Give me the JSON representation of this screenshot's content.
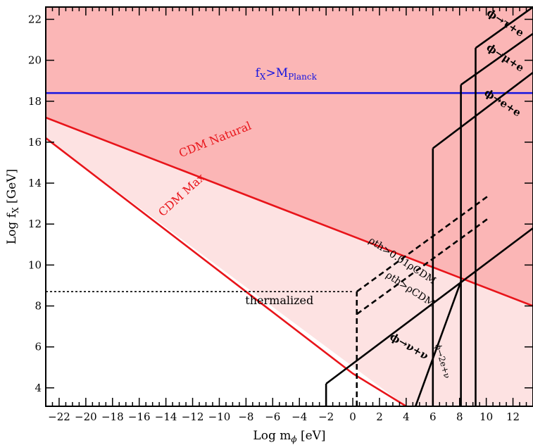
{
  "chart_data": {
    "type": "line",
    "x_axis": {
      "label": "Log m",
      "label_sub": "ϕ",
      "label_unit": " [eV]",
      "range": [
        -23,
        13.5
      ],
      "ticks": [
        -22,
        -20,
        -18,
        -16,
        -14,
        -12,
        -10,
        -8,
        -6,
        -4,
        -2,
        0,
        2,
        4,
        6,
        8,
        10,
        12
      ],
      "tick_labels": [
        "−22",
        "−20",
        "−18",
        "−16",
        "−14",
        "−12",
        "−10",
        "−8",
        "−6",
        "−4",
        "−2",
        "0",
        "2",
        "4",
        "6",
        "8",
        "10",
        "12"
      ]
    },
    "y_axis": {
      "label": "Log f",
      "label_sub": "X",
      "label_unit": " [GeV]",
      "range": [
        22.6,
        3.1
      ],
      "inverted": true,
      "ticks": [
        4,
        6,
        8,
        10,
        12,
        14,
        16,
        18,
        20,
        22
      ],
      "tick_labels": [
        "4",
        "6",
        "8",
        "10",
        "12",
        "14",
        "16",
        "18",
        "20",
        "22"
      ]
    },
    "colors": {
      "cdm": "#e8141a",
      "planck": "#1414e0",
      "light_fill": "#fde2e2",
      "dark_fill": "#fbb6b6",
      "bounds": "#000000"
    },
    "regions": [
      {
        "name": "light",
        "points": [
          [
            -23,
            16.2
          ],
          [
            4,
            3.1
          ],
          [
            13.5,
            3.1
          ],
          [
            13.5,
            22.6
          ],
          [
            -23,
            22.6
          ]
        ]
      },
      {
        "name": "dark",
        "points": [
          [
            -23,
            17.2
          ],
          [
            13.5,
            8.0
          ],
          [
            13.5,
            22.6
          ],
          [
            -23,
            22.6
          ]
        ]
      }
    ],
    "series": [
      {
        "name": "CDM Max",
        "color": "#e8141a",
        "dash": false,
        "points": [
          [
            -23,
            16.2
          ],
          [
            0,
            4.7
          ],
          [
            4,
            3.1
          ]
        ]
      },
      {
        "name": "CDM Natural",
        "color": "#e8141a",
        "dash": false,
        "points": [
          [
            -23,
            17.2
          ],
          [
            13.5,
            8.0
          ]
        ]
      },
      {
        "name": "",
        "color": "#1414e0",
        "dash": false,
        "points": [
          [
            -23,
            18.4
          ],
          [
            13.5,
            18.4
          ]
        ]
      },
      {
        "name": "",
        "color": "#000000",
        "dash": "dot",
        "points": [
          [
            -23,
            8.7
          ],
          [
            0,
            8.7
          ]
        ]
      },
      {
        "name": "",
        "color": "#000000",
        "dash": "dash",
        "points": [
          [
            0.3,
            3.1
          ],
          [
            0.3,
            8.7
          ]
        ]
      },
      {
        "name": "",
        "color": "#000000",
        "dash": "dash",
        "points": [
          [
            0.3,
            7.6
          ],
          [
            10.2,
            12.3
          ]
        ]
      },
      {
        "name": "",
        "color": "#000000",
        "dash": "dash",
        "points": [
          [
            0.3,
            8.7
          ],
          [
            10.2,
            13.4
          ]
        ]
      },
      {
        "name": "",
        "color": "#000000",
        "dash": false,
        "points": [
          [
            -2,
            4.2
          ],
          [
            -2,
            3.1
          ]
        ]
      },
      {
        "name": "",
        "color": "#000000",
        "dash": false,
        "points": [
          [
            -2,
            4.2
          ],
          [
            13.5,
            11.8
          ]
        ]
      },
      {
        "name": "",
        "color": "#000000",
        "dash": false,
        "points": [
          [
            4.7,
            3.1
          ],
          [
            8.1,
            9.2
          ]
        ]
      },
      {
        "name": "",
        "color": "#000000",
        "dash": false,
        "points": [
          [
            6.0,
            3.1
          ],
          [
            6.0,
            15.7
          ]
        ]
      },
      {
        "name": "",
        "color": "#000000",
        "dash": false,
        "points": [
          [
            6.0,
            15.7
          ],
          [
            13.5,
            19.4
          ]
        ]
      },
      {
        "name": "",
        "color": "#000000",
        "dash": false,
        "points": [
          [
            8.1,
            3.1
          ],
          [
            8.1,
            18.8
          ]
        ]
      },
      {
        "name": "",
        "color": "#000000",
        "dash": false,
        "points": [
          [
            8.1,
            18.8
          ],
          [
            13.5,
            21.3
          ]
        ]
      },
      {
        "name": "",
        "color": "#000000",
        "dash": false,
        "points": [
          [
            9.2,
            3.1
          ],
          [
            9.2,
            20.6
          ]
        ]
      },
      {
        "name": "",
        "color": "#000000",
        "dash": false,
        "points": [
          [
            9.2,
            20.6
          ],
          [
            13.5,
            22.6
          ]
        ]
      }
    ],
    "annotations": [
      {
        "text": "thermalized",
        "x": -5.5,
        "y": 8.25,
        "color": "#000000",
        "angle": 0,
        "size": 16
      },
      {
        "text": "CDM Max",
        "x": -12.8,
        "y": 13.4,
        "color": "#e8141a",
        "angle": -42,
        "size": 16
      },
      {
        "text": "CDM Natural",
        "x": -10.3,
        "y": 16.1,
        "color": "#e8141a",
        "angle": -22,
        "size": 16
      },
      {
        "text": "ϕ→ν+ν",
        "x": 4.2,
        "y": 6.0,
        "color": "#000000",
        "angle": 30,
        "size": 15,
        "bold": true
      },
      {
        "text": "ϕ→2e+ν",
        "x": 6.7,
        "y": 5.3,
        "color": "#000000",
        "angle": 74,
        "size": 12
      },
      {
        "text": "ρth>ρCDM",
        "x": 4.3,
        "y": 8.8,
        "color": "#000000",
        "angle": 33,
        "size": 14
      },
      {
        "text": "ρth>0.01ρCDM",
        "x": 3.7,
        "y": 10.2,
        "color": "#000000",
        "angle": 33,
        "size": 14
      },
      {
        "text": "ϕ→e+e",
        "x": 11.2,
        "y": 17.9,
        "color": "#000000",
        "angle": 33,
        "size": 15,
        "bold": true
      },
      {
        "text": "ϕ→μ+e",
        "x": 11.4,
        "y": 20.1,
        "color": "#000000",
        "angle": 33,
        "size": 15,
        "bold": true
      },
      {
        "text": "ϕ→τ+e",
        "x": 11.4,
        "y": 21.8,
        "color": "#000000",
        "angle": 33,
        "size": 15,
        "bold": true
      }
    ],
    "planck_label": {
      "main": "f",
      "sub1": "X",
      "mid": ">M",
      "sub2": "Planck",
      "x": -5.0,
      "y": 19.2
    },
    "grid": false,
    "legend": "none"
  }
}
